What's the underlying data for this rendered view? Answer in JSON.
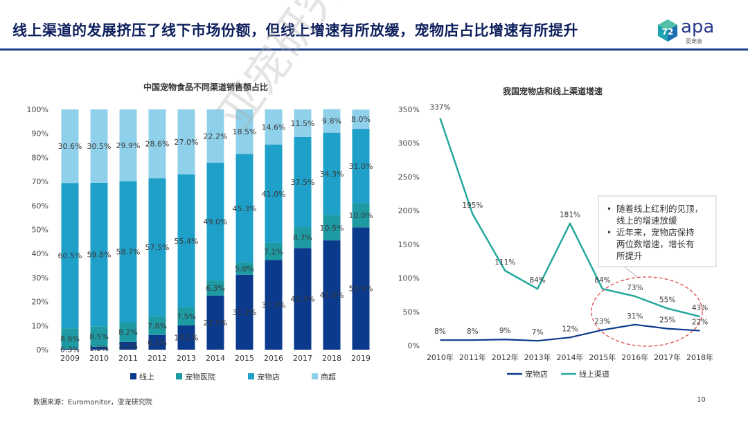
{
  "header": {
    "title": "线上渠道的发展挤压了线下市场份额，但线上增速有所放缓，宠物店占比增速有所提升",
    "logo_text": "apa",
    "logo_sub": "亚宠会"
  },
  "footer": {
    "source": "数据来源：Euromonitor，亚宠研究院",
    "page_number": "10"
  },
  "watermark": "亚宠研究院",
  "colors": {
    "online": "#0b3a8c",
    "clinic": "#1e9aa3",
    "petstore": "#1ea0c9",
    "supermarket": "#8fd1ea",
    "line_online": "#23a89b",
    "line_petstore": "#0b3a8c",
    "ellipse": "#d94848"
  },
  "chart_data": [
    {
      "type": "bar",
      "stacked": true,
      "title": "中国宠物食品不同渠道销售额占比",
      "categories": [
        "2009",
        "2010",
        "2011",
        "2012",
        "2013",
        "2014",
        "2015",
        "2016",
        "2017",
        "2018",
        "2019"
      ],
      "ylim": [
        0,
        100
      ],
      "yticks": [
        "0%",
        "10%",
        "20%",
        "30%",
        "40%",
        "50%",
        "60%",
        "70%",
        "80%",
        "90%",
        "100%"
      ],
      "series": [
        {
          "name": "线上",
          "values": [
            0.3,
            1.2,
            3.2,
            6.1,
            10.1,
            22.5,
            31.2,
            37.3,
            42.3,
            45.5,
            50.9
          ],
          "labels": [
            "0.3%",
            "1.2%",
            "3.2%",
            "6.1%",
            "10.1%",
            "22.5%",
            "31.2%",
            "37.3%",
            "42.3%",
            "45.5%",
            "50.9%"
          ]
        },
        {
          "name": "宠物医院",
          "values": [
            8.6,
            8.5,
            8.2,
            7.8,
            7.5,
            6.3,
            5.0,
            7.1,
            8.7,
            10.5,
            10.0
          ],
          "labels": [
            "8.6%",
            "8.5%",
            "8.2%",
            "7.8%",
            "7.5%",
            "6.3%",
            "5.0%",
            "7.1%",
            "8.7%",
            "10.5%",
            "10.0%"
          ]
        },
        {
          "name": "宠物店",
          "values": [
            60.5,
            59.8,
            58.7,
            57.5,
            55.4,
            49.0,
            45.3,
            41.0,
            37.5,
            34.3,
            31.0
          ],
          "labels": [
            "60.5%",
            "59.8%",
            "58.7%",
            "57.5%",
            "55.4%",
            "49.0%",
            "45.3%",
            "41.0%",
            "37.5%",
            "34.3%",
            "31.0%"
          ]
        },
        {
          "name": "商超",
          "values": [
            30.6,
            30.5,
            29.9,
            28.6,
            27.0,
            22.2,
            18.5,
            14.6,
            11.5,
            9.8,
            8.0
          ],
          "labels": [
            "30.6%",
            "30.5%",
            "29.9%",
            "28.6%",
            "27.0%",
            "22.2%",
            "18.5%",
            "14.6%",
            "11.5%",
            "9.8%",
            "8.0%"
          ]
        }
      ],
      "legend": "bottom"
    },
    {
      "type": "line",
      "title": "我国宠物店和线上渠道增速",
      "categories": [
        "2010年",
        "2011年",
        "2012年",
        "2013年",
        "2014年",
        "2015年",
        "2016年",
        "2017年",
        "2018年"
      ],
      "ylim": [
        0,
        350
      ],
      "yticks": [
        "0%",
        "50%",
        "100%",
        "150%",
        "200%",
        "250%",
        "300%",
        "350%"
      ],
      "series": [
        {
          "name": "宠物店",
          "values": [
            8,
            8,
            9,
            7,
            12,
            23,
            31,
            25,
            22
          ],
          "labels": [
            "8%",
            "8%",
            "9%",
            "7%",
            "12%",
            "23%",
            "31%",
            "25%",
            "22%"
          ]
        },
        {
          "name": "线上渠道",
          "values": [
            337,
            195,
            111,
            84,
            181,
            84,
            73,
            55,
            43
          ],
          "labels": [
            "337%",
            "195%",
            "111%",
            "84%",
            "181%",
            "84%",
            "73%",
            "55%",
            "43%"
          ]
        }
      ],
      "legend": "bottom",
      "annotation": [
        "随着线上红利的见顶，线上的增速放缓",
        "近年来，宠物店保持两位数增速，增长有所提升"
      ]
    }
  ]
}
